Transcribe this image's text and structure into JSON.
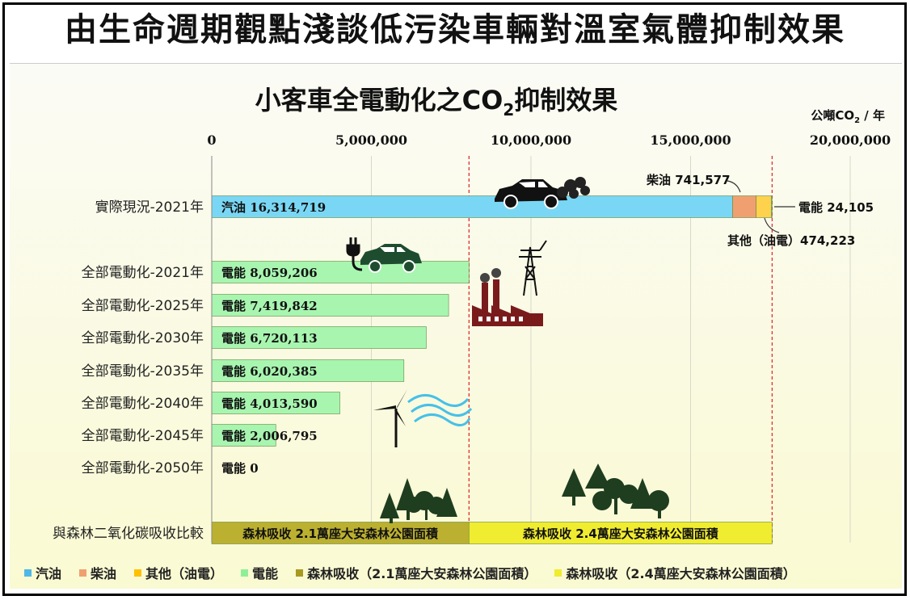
{
  "page_title": "由生命週期觀點淺談低污染車輛對溫室氣體抑制效果",
  "chart_data": {
    "type": "bar",
    "orientation": "horizontal",
    "stacked": true,
    "title_main": "小客車全電動化之CO",
    "title_sub": "2",
    "title_rest": "抑制效果",
    "unit_main": "公噸CO",
    "unit_sub": "2",
    "unit_rest": " / 年",
    "xlim": [
      0,
      20000000
    ],
    "x_ticks": [
      0,
      5000000,
      10000000,
      15000000,
      20000000
    ],
    "x_tick_labels": [
      "0",
      "5,000,000",
      "10,000,000",
      "15,000,000",
      "20,000,000"
    ],
    "grid": true,
    "reference_lines": [
      8059206,
      17554624
    ],
    "categories": [
      "實際現況-2021年",
      "全部電動化-2021年",
      "全部電動化-2025年",
      "全部電動化-2030年",
      "全部電動化-2035年",
      "全部電動化-2040年",
      "全部電動化-2045年",
      "全部電動化-2050年",
      "與森林二氧化碳吸收比較"
    ],
    "series": [
      {
        "name": "汽油",
        "color": "#79d7f5",
        "values": [
          16314719,
          0,
          0,
          0,
          0,
          0,
          0,
          0,
          0
        ]
      },
      {
        "name": "柴油",
        "color": "#f0a070",
        "values": [
          741577,
          0,
          0,
          0,
          0,
          0,
          0,
          0,
          0
        ]
      },
      {
        "name": "其他（油電）",
        "color": "#ffd24d",
        "values": [
          474223,
          0,
          0,
          0,
          0,
          0,
          0,
          0,
          0
        ]
      },
      {
        "name": "電能",
        "color": "#a8f5b0",
        "values": [
          24105,
          8059206,
          7419842,
          6720113,
          6020385,
          4013590,
          2006795,
          0,
          0
        ]
      },
      {
        "name": "森林吸收（2.1萬座大安森林公園面積）",
        "color": "#bcb030",
        "values": [
          0,
          0,
          0,
          0,
          0,
          0,
          0,
          0,
          8059206
        ]
      },
      {
        "name": "森林吸收（2.4萬座大安森林公園面積）",
        "color": "#f0ec30",
        "values": [
          0,
          0,
          0,
          0,
          0,
          0,
          0,
          0,
          9495418
        ]
      }
    ],
    "bar_labels": [
      "汽油 16,314,719",
      "電能 8,059,206",
      "電能 7,419,842",
      "電能 6,720,113",
      "電能 6,020,385",
      "電能 4,013,590",
      "電能 2,006,795",
      "電能 0"
    ],
    "callouts": {
      "diesel": "柴油 741,577",
      "electric": "電能 24,105",
      "hybrid": "其他（油電）474,223"
    },
    "forest_labels": [
      "森林吸收  2.1萬座大安森林公園面積",
      "森林吸收  2.4萬座大安森林公園面積"
    ],
    "legend": [
      {
        "label": "汽油",
        "color": "#4fb8e8"
      },
      {
        "label": "柴油",
        "color": "#f0a070"
      },
      {
        "label": "其他（油電）",
        "color": "#ffc000"
      },
      {
        "label": "電能",
        "color": "#8fef98"
      },
      {
        "label": "森林吸收（2.1萬座大安森林公園面積）",
        "color": "#a89a20"
      },
      {
        "label": "森林吸收（2.4萬座大安森林公園面積）",
        "color": "#f0ec30"
      }
    ]
  }
}
